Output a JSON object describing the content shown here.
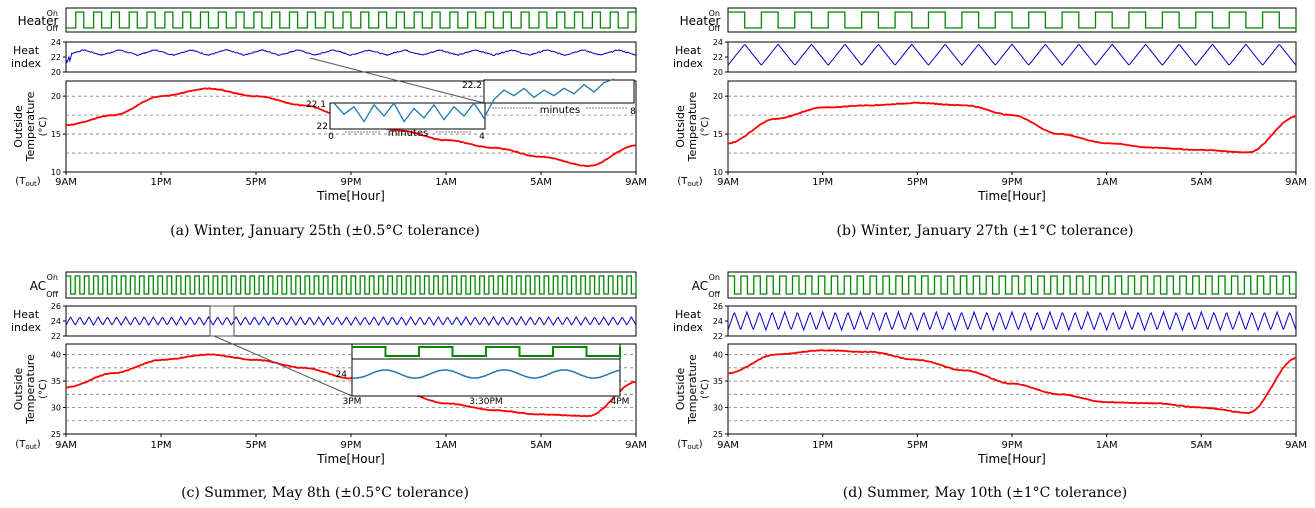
{
  "colors": {
    "temp": "#ff0000",
    "heat_index": "#0000cc",
    "switch": "#008800",
    "inset_line": "#1f77b4",
    "grid": "#7f7f7f",
    "axis": "#000000"
  },
  "chart_data": [
    {
      "id": "a",
      "type": "line",
      "caption": "(a)  Winter, January 25th (±0.5°C tolerance)",
      "switch_label": "Heater",
      "switch_ticks": [
        "On",
        "Off"
      ],
      "switch_cycles": 32,
      "switch_start_high": false,
      "hi_label": [
        "Heat",
        "index"
      ],
      "hi_ylim": [
        20,
        24
      ],
      "hi_yticks": [
        20,
        22,
        24
      ],
      "hi_mean": 22.6,
      "hi_amp": 0.35,
      "hi_cycles": 16,
      "temp_ylabel": [
        "Outside",
        "Temperature",
        "(°C)"
      ],
      "tout_label": "(T",
      "tout_sub": "out",
      "tout_close": ")",
      "ylim": [
        10,
        22
      ],
      "yticks": [
        10,
        15,
        20
      ],
      "grid": true,
      "xlabel": "Time[Hour]",
      "xticks": [
        "9AM",
        "1PM",
        "5PM",
        "9PM",
        "1AM",
        "5AM",
        "9AM"
      ],
      "x_hours": [
        0,
        2,
        4,
        6,
        8,
        10,
        12,
        14,
        16,
        18,
        20,
        22,
        24
      ],
      "temp_values": [
        16.2,
        17.5,
        20.0,
        21.0,
        20.0,
        18.8,
        17.0,
        15.5,
        14.2,
        13.2,
        12.0,
        10.8,
        13.5
      ],
      "inset": {
        "type": "line",
        "yticks": [
          "22.2",
          "22.1",
          "22"
        ],
        "xticks": [
          "0",
          "4",
          "8"
        ],
        "xlabel": "minutes",
        "values": [
          22.12,
          22.06,
          22.1,
          22.02,
          22.11,
          22.05,
          22.12,
          22.02,
          22.09,
          22.04,
          22.11,
          22.03,
          22.1,
          22.05,
          22.12,
          22.04,
          22.14,
          22.19,
          22.16,
          22.2,
          22.15,
          22.19,
          22.16,
          22.2,
          22.17,
          22.22,
          22.18,
          22.23,
          22.25
        ]
      }
    },
    {
      "id": "b",
      "type": "line",
      "caption": "(b)  Winter, January 27th (±1°C tolerance)",
      "switch_label": "Heater",
      "switch_ticks": [
        "On",
        "Off"
      ],
      "switch_cycles": 17,
      "switch_start_high": true,
      "hi_label": [
        "Heat",
        "index"
      ],
      "hi_ylim": [
        20,
        24
      ],
      "hi_yticks": [
        20,
        22,
        24
      ],
      "hi_mean": 22.3,
      "hi_amp": 1.4,
      "hi_cycles": 17,
      "temp_ylabel": [
        "Outside",
        "Temperature",
        "(°C)"
      ],
      "tout_label": "(T",
      "tout_sub": "out",
      "tout_close": ")",
      "ylim": [
        10,
        22
      ],
      "yticks": [
        10,
        15,
        20
      ],
      "grid": true,
      "xlabel": "Time[Hour]",
      "xticks": [
        "9AM",
        "1PM",
        "5PM",
        "9PM",
        "1AM",
        "5AM",
        "9AM"
      ],
      "x_hours": [
        0,
        2,
        4,
        6,
        8,
        10,
        12,
        14,
        16,
        18,
        20,
        22,
        24
      ],
      "temp_values": [
        13.8,
        17.0,
        18.5,
        18.8,
        19.1,
        18.8,
        17.5,
        15.0,
        13.8,
        13.2,
        12.9,
        12.6,
        17.3
      ]
    },
    {
      "id": "c",
      "type": "line",
      "caption": "(c)  Summer, May 8th (±0.5°C tolerance)",
      "switch_label": "AC",
      "switch_ticks": [
        "On",
        "Off"
      ],
      "switch_cycles": 62,
      "switch_start_high": true,
      "hi_label": [
        "Heat",
        "index"
      ],
      "hi_ylim": [
        22,
        26
      ],
      "hi_yticks": [
        22,
        24,
        26
      ],
      "hi_mean": 24.0,
      "hi_amp": 0.55,
      "hi_cycles": 62,
      "temp_ylabel": [
        "Outside",
        "Temperature",
        "(°C)"
      ],
      "tout_label": "(T",
      "tout_sub": "out",
      "tout_close": ")",
      "ylim": [
        25,
        42
      ],
      "yticks": [
        25,
        30,
        35,
        40
      ],
      "grid": true,
      "xlabel": "Time[Hour]",
      "xticks": [
        "9AM",
        "1PM",
        "5PM",
        "9PM",
        "1AM",
        "5AM",
        "9AM"
      ],
      "x_hours": [
        0,
        2,
        4,
        6,
        8,
        10,
        12,
        14,
        16,
        18,
        20,
        22,
        24
      ],
      "temp_values": [
        33.8,
        36.5,
        39.0,
        40.0,
        39.0,
        37.5,
        35.5,
        33.0,
        30.8,
        29.5,
        28.7,
        28.4,
        34.8
      ],
      "inset": {
        "type": "line",
        "ytick": "24",
        "xticks": [
          "3PM",
          "3:30PM",
          "4PM"
        ],
        "switch_cycles": 4,
        "wave_cycles": 4.5
      }
    },
    {
      "id": "d",
      "type": "line",
      "caption": "(d)  Summer, May 10th (±1°C tolerance)",
      "switch_label": "AC",
      "switch_ticks": [
        "On",
        "Off"
      ],
      "switch_cycles": 44,
      "switch_start_high": true,
      "hi_label": [
        "Heat",
        "index"
      ],
      "hi_ylim": [
        22,
        26
      ],
      "hi_yticks": [
        22,
        24,
        26
      ],
      "hi_mean": 24.0,
      "hi_amp": 1.2,
      "hi_cycles": 45,
      "temp_ylabel": [
        "Outside",
        "Temperature",
        "(°C)"
      ],
      "tout_label": "(T",
      "tout_sub": "out",
      "tout_close": ")",
      "ylim": [
        25,
        42
      ],
      "yticks": [
        25,
        30,
        35,
        40
      ],
      "grid": true,
      "xlabel": "Time[Hour]",
      "xticks": [
        "9AM",
        "1PM",
        "5PM",
        "9PM",
        "1AM",
        "5AM",
        "9AM"
      ],
      "x_hours": [
        0,
        2,
        4,
        6,
        8,
        10,
        12,
        14,
        16,
        18,
        20,
        22,
        24
      ],
      "temp_values": [
        36.5,
        40.0,
        40.8,
        40.5,
        39.0,
        37.0,
        34.5,
        32.5,
        31.0,
        30.8,
        30.0,
        29.0,
        39.3
      ]
    }
  ]
}
